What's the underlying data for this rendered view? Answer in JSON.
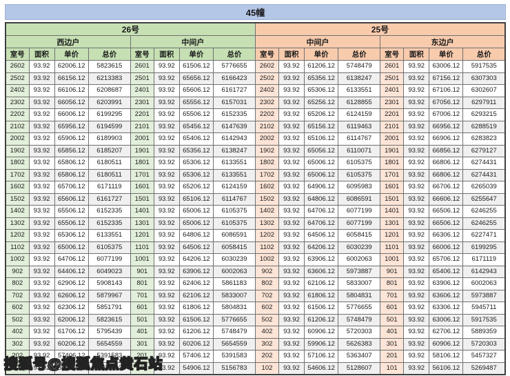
{
  "title": "45幢",
  "watermark": "搜狐号@搜狐焦点黄石站",
  "colors": {
    "title_bar": "#b4c7e7",
    "section_26_header": "#c6e0b4",
    "section_25_header": "#f8cbad",
    "room_col_26": "#e2efda",
    "room_col_25": "#fce4d6",
    "alt_row": "#f0f0f1",
    "grid_line": "#6f6f6f"
  },
  "table": {
    "sections": [
      {
        "label": "26号"
      },
      {
        "label": "25号"
      }
    ],
    "unit_headers": [
      "西边户",
      "中间户",
      "中间户",
      "东边户"
    ],
    "columns": [
      "室号",
      "面积",
      "单价",
      "总价"
    ],
    "rows": [
      [
        [
          "2602",
          "93.92",
          "62006.12",
          "5823615"
        ],
        [
          "2601",
          "93.92",
          "61506.12",
          "5776655"
        ],
        [
          "2602",
          "93.92",
          "61206.12",
          "5748479"
        ],
        [
          "2601",
          "93.92",
          "63006.12",
          "5917535"
        ]
      ],
      [
        [
          "2502",
          "93.92",
          "66156.12",
          "6213383"
        ],
        [
          "2501",
          "93.92",
          "65656.12",
          "6166423"
        ],
        [
          "2502",
          "93.92",
          "65356.12",
          "6138247"
        ],
        [
          "2501",
          "93.92",
          "67156.12",
          "6307303"
        ]
      ],
      [
        [
          "2402",
          "93.92",
          "66106.12",
          "6208687"
        ],
        [
          "2401",
          "93.92",
          "65606.12",
          "6161727"
        ],
        [
          "2402",
          "93.92",
          "65306.12",
          "6133551"
        ],
        [
          "2401",
          "93.92",
          "67106.12",
          "6302607"
        ]
      ],
      [
        [
          "2302",
          "93.92",
          "66056.12",
          "6203991"
        ],
        [
          "2301",
          "93.92",
          "65556.12",
          "6157031"
        ],
        [
          "2302",
          "93.92",
          "65256.12",
          "6128855"
        ],
        [
          "2301",
          "93.92",
          "67056.12",
          "6297911"
        ]
      ],
      [
        [
          "2202",
          "93.92",
          "66006.12",
          "6199295"
        ],
        [
          "2201",
          "93.92",
          "65506.12",
          "6152335"
        ],
        [
          "2202",
          "93.92",
          "65206.12",
          "6124159"
        ],
        [
          "2201",
          "93.92",
          "67006.12",
          "6293215"
        ]
      ],
      [
        [
          "2102",
          "93.92",
          "65956.12",
          "6194599"
        ],
        [
          "2101",
          "93.92",
          "65456.12",
          "6147639"
        ],
        [
          "2102",
          "93.92",
          "65156.12",
          "6119463"
        ],
        [
          "2101",
          "93.92",
          "66956.12",
          "6288519"
        ]
      ],
      [
        [
          "2002",
          "93.92",
          "65906.12",
          "6189903"
        ],
        [
          "2001",
          "93.92",
          "65406.12",
          "6142943"
        ],
        [
          "2002",
          "93.92",
          "65106.12",
          "6114767"
        ],
        [
          "2001",
          "93.92",
          "66906.12",
          "6283823"
        ]
      ],
      [
        [
          "1902",
          "93.92",
          "65856.12",
          "6185207"
        ],
        [
          "1901",
          "93.92",
          "65356.12",
          "6138247"
        ],
        [
          "1902",
          "93.92",
          "65056.12",
          "6110071"
        ],
        [
          "1901",
          "93.92",
          "66856.12",
          "6279127"
        ]
      ],
      [
        [
          "1802",
          "93.92",
          "65806.12",
          "6180511"
        ],
        [
          "1801",
          "93.92",
          "65306.12",
          "6133551"
        ],
        [
          "1802",
          "93.92",
          "65006.12",
          "6105375"
        ],
        [
          "1801",
          "93.92",
          "66806.12",
          "6274431"
        ]
      ],
      [
        [
          "1702",
          "93.92",
          "65806.12",
          "6180511"
        ],
        [
          "1701",
          "93.92",
          "65306.12",
          "6133551"
        ],
        [
          "1702",
          "93.92",
          "65006.12",
          "6105375"
        ],
        [
          "1701",
          "93.92",
          "66806.12",
          "6274431"
        ]
      ],
      [
        [
          "1602",
          "93.92",
          "65706.12",
          "6171119"
        ],
        [
          "1601",
          "93.92",
          "65206.12",
          "6124159"
        ],
        [
          "1602",
          "93.92",
          "64906.12",
          "6095983"
        ],
        [
          "1601",
          "93.92",
          "66706.12",
          "6265039"
        ]
      ],
      [
        [
          "1502",
          "93.92",
          "65606.12",
          "6161727"
        ],
        [
          "1501",
          "93.92",
          "65106.12",
          "6114767"
        ],
        [
          "1502",
          "93.92",
          "64806.12",
          "6086591"
        ],
        [
          "1501",
          "93.92",
          "66606.12",
          "6255647"
        ]
      ],
      [
        [
          "1402",
          "93.92",
          "65506.12",
          "6152335"
        ],
        [
          "1401",
          "93.92",
          "65006.12",
          "6105375"
        ],
        [
          "1402",
          "93.92",
          "64706.12",
          "6077199"
        ],
        [
          "1401",
          "93.92",
          "66506.12",
          "6246255"
        ]
      ],
      [
        [
          "1302",
          "93.92",
          "65506.12",
          "6152335"
        ],
        [
          "1301",
          "93.92",
          "65006.12",
          "6105375"
        ],
        [
          "1302",
          "93.92",
          "64706.12",
          "6077199"
        ],
        [
          "1301",
          "93.92",
          "66506.12",
          "6246255"
        ]
      ],
      [
        [
          "1202",
          "93.92",
          "65306.12",
          "6133551"
        ],
        [
          "1201",
          "93.92",
          "64806.12",
          "6086591"
        ],
        [
          "1202",
          "93.92",
          "64506.12",
          "6058415"
        ],
        [
          "1201",
          "93.92",
          "66306.12",
          "6227471"
        ]
      ],
      [
        [
          "1102",
          "93.92",
          "65006.12",
          "6105375"
        ],
        [
          "1101",
          "93.92",
          "64506.12",
          "6058415"
        ],
        [
          "1102",
          "93.92",
          "64206.12",
          "6030239"
        ],
        [
          "1101",
          "93.92",
          "66006.12",
          "6199295"
        ]
      ],
      [
        [
          "1002",
          "93.92",
          "64706.12",
          "6077199"
        ],
        [
          "1001",
          "93.92",
          "64206.12",
          "6030239"
        ],
        [
          "1002",
          "93.92",
          "63906.12",
          "6002063"
        ],
        [
          "1001",
          "93.92",
          "65706.12",
          "6171119"
        ]
      ],
      [
        [
          "902",
          "93.92",
          "64406.12",
          "6049023"
        ],
        [
          "901",
          "93.92",
          "63906.12",
          "6002063"
        ],
        [
          "902",
          "93.92",
          "63606.12",
          "5973887"
        ],
        [
          "901",
          "93.92",
          "65406.12",
          "6142943"
        ]
      ],
      [
        [
          "802",
          "93.92",
          "62906.12",
          "5908143"
        ],
        [
          "801",
          "93.92",
          "62406.12",
          "5861183"
        ],
        [
          "802",
          "93.92",
          "62106.12",
          "5833007"
        ],
        [
          "801",
          "93.92",
          "63906.12",
          "6002063"
        ]
      ],
      [
        [
          "702",
          "93.92",
          "62606.12",
          "5879967"
        ],
        [
          "701",
          "93.92",
          "62106.12",
          "5833007"
        ],
        [
          "702",
          "93.92",
          "61806.12",
          "5804831"
        ],
        [
          "701",
          "93.92",
          "63606.12",
          "5973887"
        ]
      ],
      [
        [
          "602",
          "93.92",
          "62306.12",
          "5851791"
        ],
        [
          "601",
          "93.92",
          "61806.12",
          "5804831"
        ],
        [
          "602",
          "93.92",
          "61506.12",
          "5776655"
        ],
        [
          "601",
          "93.92",
          "63306.12",
          "5945711"
        ]
      ],
      [
        [
          "502",
          "93.92",
          "62006.12",
          "5823615"
        ],
        [
          "501",
          "93.92",
          "61506.12",
          "5776655"
        ],
        [
          "502",
          "93.92",
          "61206.12",
          "5748479"
        ],
        [
          "501",
          "93.92",
          "63006.12",
          "5917535"
        ]
      ],
      [
        [
          "402",
          "93.92",
          "61706.12",
          "5795439"
        ],
        [
          "401",
          "93.92",
          "61206.12",
          "5748479"
        ],
        [
          "402",
          "93.92",
          "60906.12",
          "5720303"
        ],
        [
          "401",
          "93.92",
          "62706.12",
          "5889359"
        ]
      ],
      [
        [
          "302",
          "93.92",
          "60206.12",
          "5654559"
        ],
        [
          "301",
          "93.92",
          "60206.12",
          "5654559"
        ],
        [
          "302",
          "93.92",
          "59906.12",
          "5626383"
        ],
        [
          "301",
          "93.92",
          "60906.12",
          "5720303"
        ]
      ],
      [
        [
          "202",
          "93.92",
          "57406.12",
          "5391583"
        ],
        [
          "201",
          "93.92",
          "57406.12",
          "5391583"
        ],
        [
          "202",
          "93.92",
          "57106.12",
          "5363407"
        ],
        [
          "201",
          "93.92",
          "58106.12",
          "5457327"
        ]
      ],
      [
        [
          "102",
          "93.92",
          "55406.12",
          "5203743"
        ],
        [
          "101",
          "93.92",
          "54906.12",
          "5156783"
        ],
        [
          "102",
          "93.92",
          "54606.12",
          "5128607"
        ],
        [
          "101",
          "93.92",
          "56106.12",
          "5269487"
        ]
      ]
    ]
  }
}
